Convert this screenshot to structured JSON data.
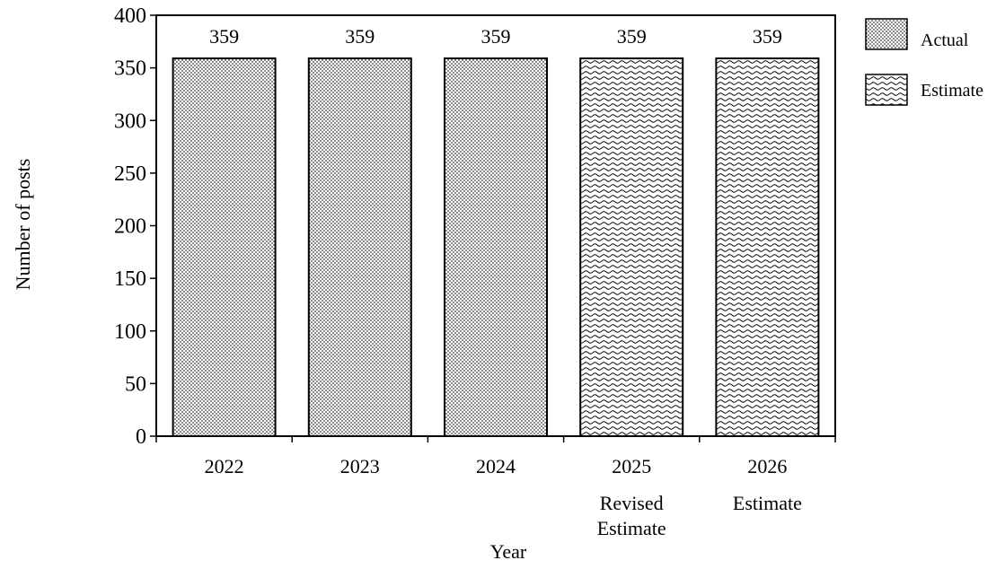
{
  "chart_data": {
    "type": "bar",
    "categories": [
      "2022",
      "2023",
      "2024",
      "2025",
      "2026"
    ],
    "category_sublabels": [
      "",
      "",
      "",
      "Revised\nEstimate",
      "Estimate"
    ],
    "values": [
      359,
      359,
      359,
      359,
      359
    ],
    "data_labels": [
      "359",
      "359",
      "359",
      "359",
      "359"
    ],
    "bar_series": [
      "Actual",
      "Actual",
      "Actual",
      "Estimate",
      "Estimate"
    ],
    "series": [
      {
        "name": "Actual",
        "pattern": "dots"
      },
      {
        "name": "Estimate",
        "pattern": "waves"
      }
    ],
    "xlabel": "Year",
    "ylabel": "Number of posts",
    "ylim": [
      0,
      400
    ],
    "yticks": [
      0,
      50,
      100,
      150,
      200,
      250,
      300,
      350,
      400
    ],
    "grid": false,
    "legend_position": "top-right",
    "colors": {
      "bar_stroke": "#000000",
      "background": "#ffffff"
    }
  }
}
